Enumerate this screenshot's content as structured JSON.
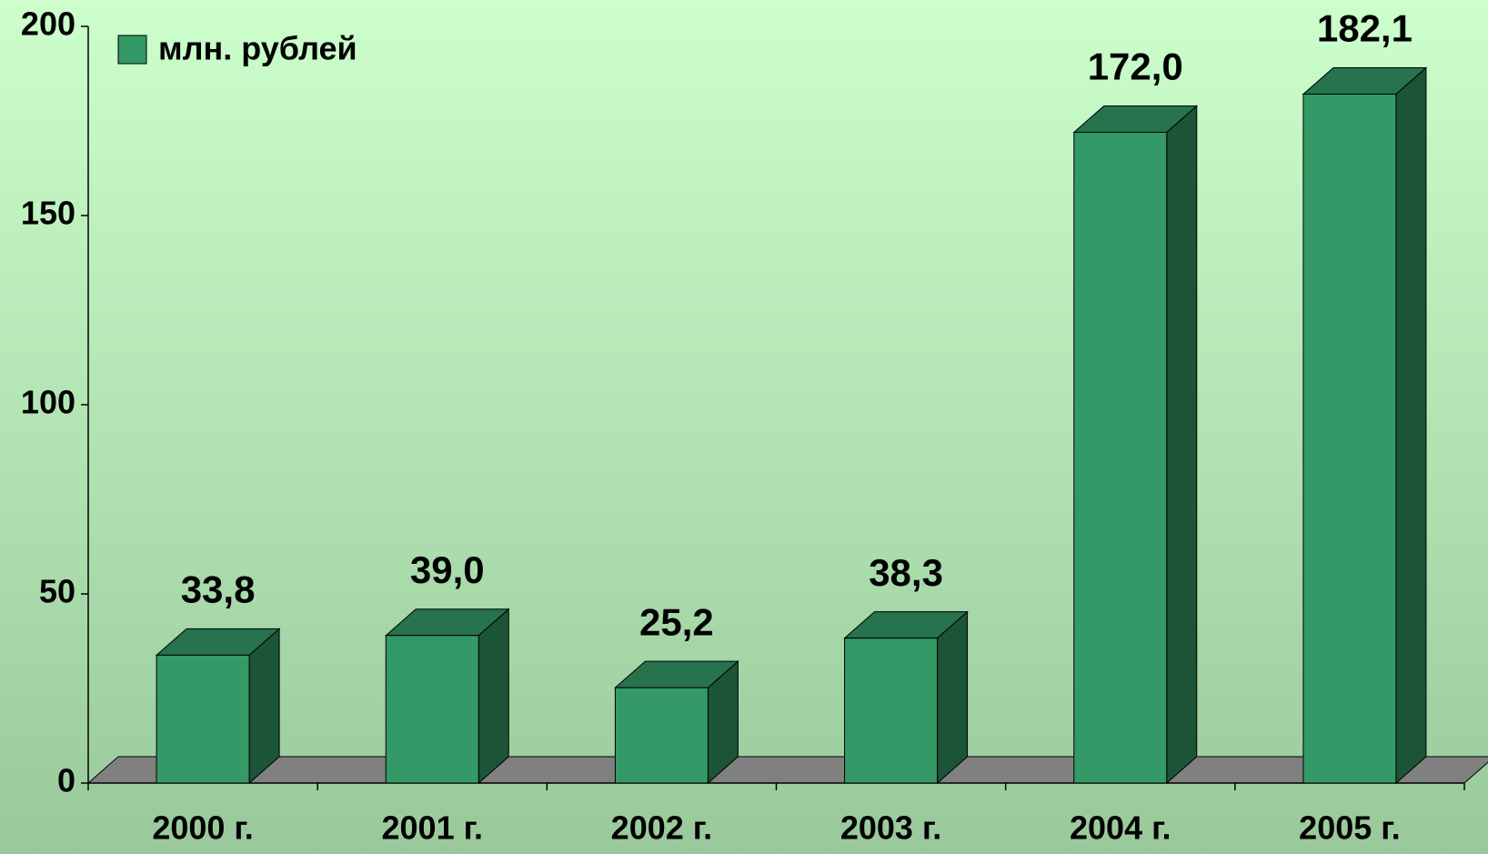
{
  "chart_data": {
    "type": "bar3d",
    "categories": [
      "2000 г.",
      "2001 г.",
      "2002 г.",
      "2003 г.",
      "2004 г.",
      "2005 г."
    ],
    "series": [
      {
        "name": "млн. рублей",
        "color": "#339966",
        "values": [
          33.8,
          39.0,
          25.2,
          38.3,
          172.0,
          182.1
        ],
        "value_labels": [
          "33,8",
          "39,0",
          "25,2",
          "38,3",
          "172,0",
          "182,1"
        ]
      }
    ],
    "ylim": [
      0,
      200
    ],
    "yticks": [
      0,
      50,
      100,
      150,
      200
    ],
    "grid": false,
    "legend": "top-left"
  }
}
